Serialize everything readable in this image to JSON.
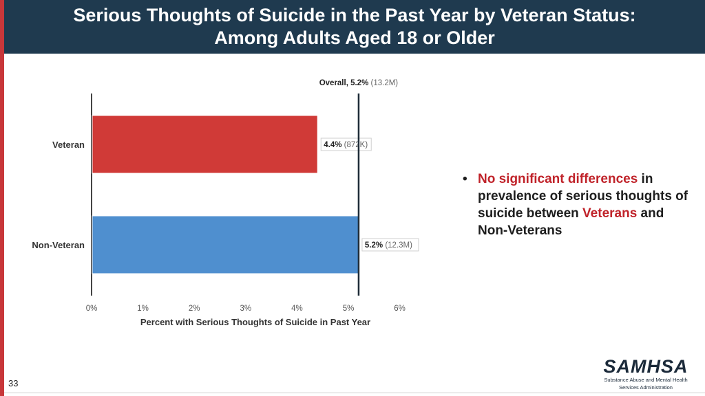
{
  "slide": {
    "title_line1": "Serious Thoughts of Suicide in the Past Year by Veteran Status:",
    "title_line2": "Among Adults Aged 18 or Older",
    "page_number": "33"
  },
  "bullet": {
    "accent1": "No significant differences",
    "text1": " in prevalence of serious thoughts of suicide between ",
    "accent2": "Veterans",
    "text2": " and Non-Veterans"
  },
  "logo": {
    "wordmark": "SAMHSA",
    "tagline_line1": "Substance Abuse and Mental Health",
    "tagline_line2": "Services Administration"
  },
  "chart_data": {
    "type": "bar",
    "orientation": "horizontal",
    "categories": [
      "Veteran",
      "Non-Veteran"
    ],
    "values": [
      4.4,
      5.2
    ],
    "value_labels": [
      "4.4%",
      "5.2%"
    ],
    "count_labels": [
      "(872K)",
      "(12.3M)"
    ],
    "bar_colors": [
      "#d03a37",
      "#4f8fcf"
    ],
    "xlabel": "Percent with Serious Thoughts of Suicide in Past Year",
    "xticks": [
      "0%",
      "1%",
      "2%",
      "3%",
      "4%",
      "5%",
      "6%"
    ],
    "xlim": [
      0,
      6
    ],
    "reference_line": {
      "value": 5.2,
      "label": "Overall, 5.2%",
      "count": "(13.2M)"
    },
    "grid": false
  }
}
